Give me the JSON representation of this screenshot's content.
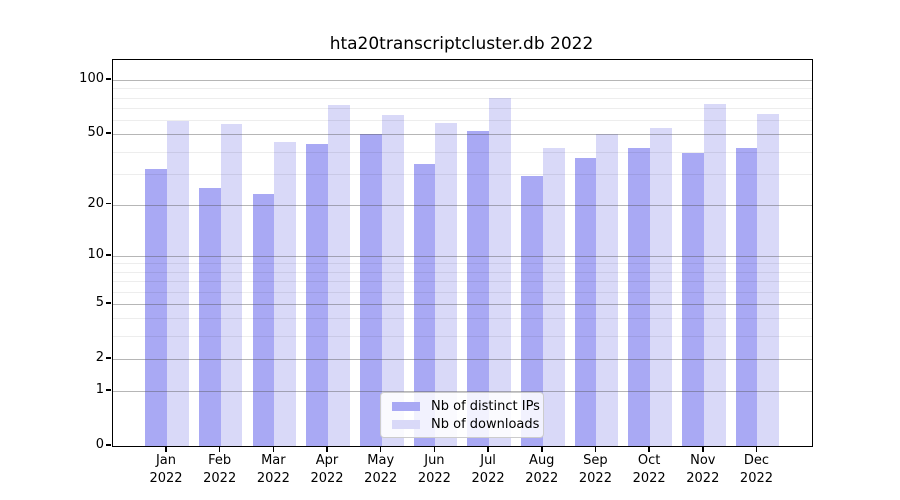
{
  "chart_data": {
    "type": "bar",
    "title": "hta20transcriptcluster.db 2022",
    "categories": [
      "Jan",
      "Feb",
      "Mar",
      "Apr",
      "May",
      "Jun",
      "Jul",
      "Aug",
      "Sep",
      "Oct",
      "Nov",
      "Dec"
    ],
    "year_label": "2022",
    "series": [
      {
        "name": "Nb of distinct IPs",
        "color": "#a9a9f4",
        "values": [
          32,
          25,
          23,
          44,
          50,
          34,
          52,
          29,
          37,
          42,
          39,
          42
        ]
      },
      {
        "name": "Nb of downloads",
        "color": "#d9d9f8",
        "values": [
          59,
          57,
          45,
          73,
          64,
          58,
          79,
          42,
          50,
          54,
          74,
          65
        ]
      }
    ],
    "xlabel": "",
    "ylabel": "",
    "y_scale": "log10(1+x)",
    "y_tick_values": [
      100,
      50,
      20,
      10,
      5,
      2,
      1,
      0
    ],
    "y_tick_labels": [
      "100",
      "50",
      "20",
      "10",
      "5",
      "2",
      "1",
      "0"
    ],
    "y_minor_tick_values": [
      3,
      4,
      6,
      7,
      8,
      9,
      30,
      40,
      60,
      70,
      80,
      90
    ],
    "ylim": [
      0,
      129
    ],
    "grid": "on",
    "legend_position": "inside-bottom-center"
  },
  "colors": {
    "bar_dark": "#a9a9f4",
    "bar_light": "#d9d9f8",
    "grid_major": "#b4b4b4",
    "grid_minor": "#ececec",
    "axis": "#000000",
    "background": "#ffffff"
  }
}
